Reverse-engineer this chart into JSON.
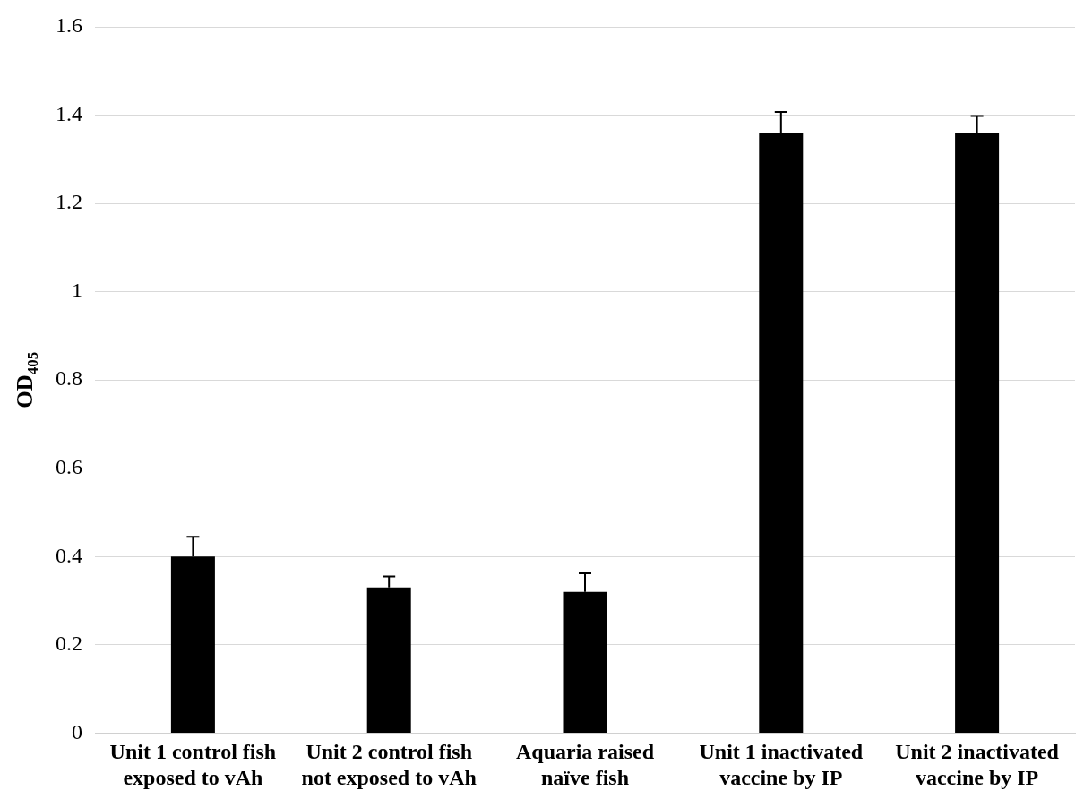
{
  "chart_data": {
    "type": "bar",
    "ylabel": "OD$_{405}$",
    "categories": [
      "Unit 1 control fish exposed to vAh",
      "Unit 2 control fish not exposed to vAh",
      "Aquaria raised naïve fish",
      "Unit 1 inactivated vaccine by IP",
      "Unit 2 inactivated vaccine by IP"
    ],
    "values": [
      0.4,
      0.33,
      0.32,
      1.36,
      1.36
    ],
    "errors": [
      [
        0.4,
        0.445
      ],
      [
        0.33,
        0.355
      ],
      [
        0.32,
        0.362
      ],
      [
        1.36,
        1.407
      ],
      [
        1.36,
        1.398
      ]
    ],
    "color": "#000000",
    "ylim": [
      0,
      1.6
    ],
    "yticks": [
      0,
      0.2,
      0.4,
      0.6,
      0.8,
      1,
      1.2,
      1.4,
      1.6
    ],
    "grid": "y",
    "legend": false
  }
}
